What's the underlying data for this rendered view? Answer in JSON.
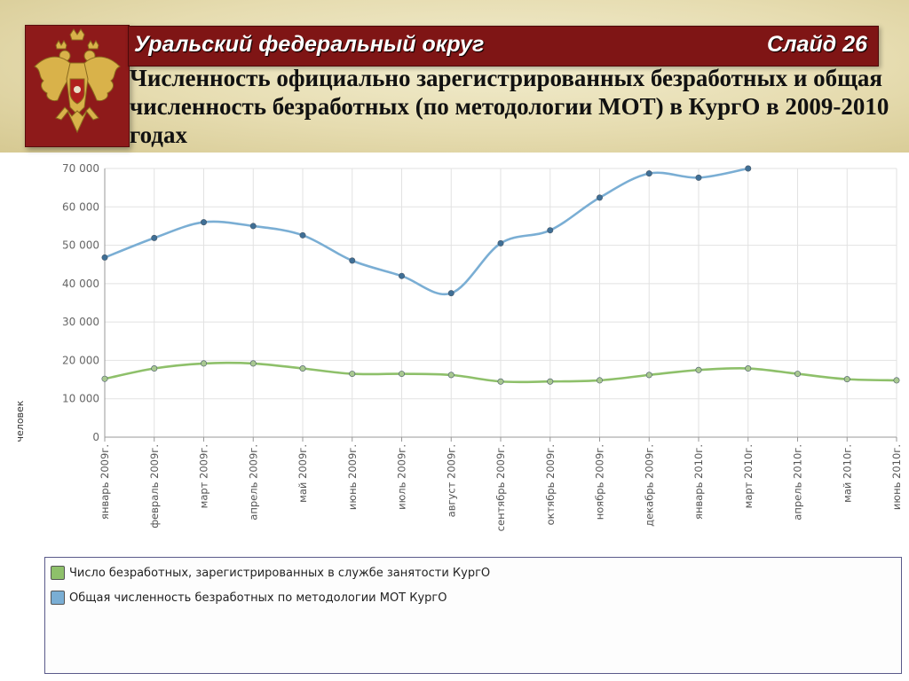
{
  "header": {
    "region": "Уральский федеральный округ",
    "slide_number": "Слайд 26",
    "title": "Численность официально зарегистрированных безработных и общая численность безработных (по методологии МОТ) в КургО в 2009-2010 годах"
  },
  "emblem": {
    "icon": "russian-coat-of-arms-icon",
    "colors": {
      "field": "#8e1a1a",
      "eagle": "#d9b24a"
    }
  },
  "chart_data": {
    "type": "line",
    "title": "",
    "xlabel": "",
    "ylabel": "человек",
    "ylim": [
      0,
      70000
    ],
    "yticks": [
      0,
      10000,
      20000,
      30000,
      40000,
      50000,
      60000,
      70000
    ],
    "ytick_labels": [
      "0",
      "10 000",
      "20 000",
      "30 000",
      "40 000",
      "50 000",
      "60 000",
      "70 000"
    ],
    "grid": true,
    "legend_position": "bottom",
    "categories": [
      "январь 2009г.",
      "февраль 2009г.",
      "март 2009г.",
      "апрель 2009г.",
      "май 2009г.",
      "июнь 2009г.",
      "июль 2009г.",
      "август 2009г.",
      "сентябрь 2009г.",
      "октябрь 2009г.",
      "ноябрь 2009г.",
      "декабрь 2009г.",
      "январь 2010г.",
      "март 2010г.",
      "апрель 2010г.",
      "май 2010г.",
      "июнь 2010г."
    ],
    "series": [
      {
        "name": "Число безработных, зарегистрированных в службе занятости  КургО",
        "color": "#8ec06a",
        "point_color": "#a8c890",
        "values": [
          15200,
          17900,
          19200,
          19200,
          17900,
          16500,
          16500,
          16200,
          14500,
          14500,
          14800,
          16200,
          17500,
          17900,
          16500,
          15100,
          14800
        ]
      },
      {
        "name": "Общая численность безработных по методологии МОТ  КургО",
        "color": "#7aaed4",
        "point_color": "#3f6f96",
        "values": [
          46800,
          51900,
          56000,
          55000,
          52600,
          46000,
          42000,
          37500,
          50500,
          53900,
          62400,
          68700,
          67600,
          70000,
          null,
          null,
          null
        ]
      }
    ]
  }
}
